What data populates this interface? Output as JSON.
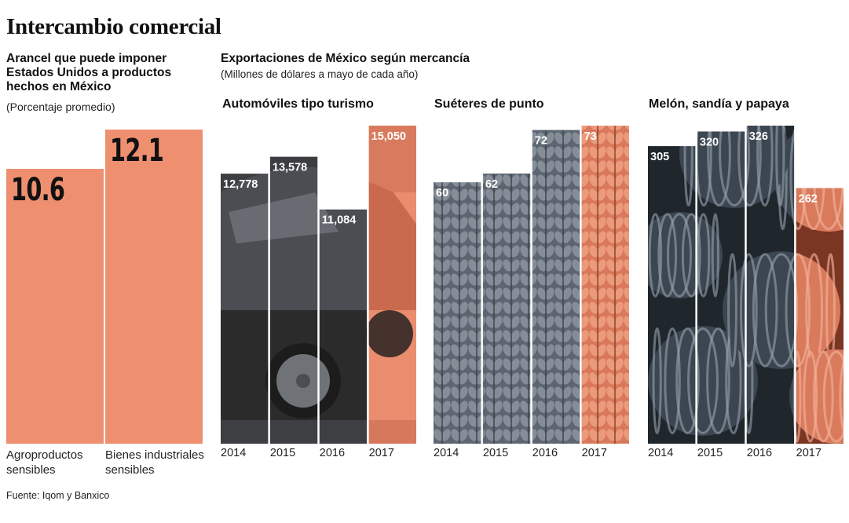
{
  "title": "Intercambio comercial",
  "left": {
    "title": "Arancel que puede imponer Estados Unidos a productos hechos en México",
    "title_lines": [
      "Arancel que puede imponer",
      "Estados Unidos a productos",
      "hechos en México"
    ],
    "note": "(Porcentaje promedio)"
  },
  "right": {
    "title": "Exportaciones de México según mercancía",
    "note": "(Millones de dólares a mayo de cada año)"
  },
  "source": "Fuente: Iqom y Banxico",
  "colors": {
    "accent": "#ee8f70",
    "dark": "#2e2e2e",
    "gray": "#7a828a",
    "text": "#111111"
  },
  "chart_data": [
    {
      "type": "bar",
      "title": "Arancel que puede imponer Estados Unidos a productos hechos en México",
      "subtitle": "(Porcentaje promedio)",
      "categories": [
        "Agroproductos sensibles",
        "Bienes industriales sensibles"
      ],
      "category_lines": [
        [
          "Agroproductos",
          "sensibles"
        ],
        [
          "Bienes industriales",
          "sensibles"
        ]
      ],
      "values": [
        10.6,
        12.1
      ],
      "value_labels": [
        "10.6",
        "12.1"
      ],
      "ylim": [
        0,
        12.1
      ]
    },
    {
      "type": "bar",
      "title": "Automóviles tipo turismo",
      "categories": [
        "2014",
        "2015",
        "2016",
        "2017"
      ],
      "values": [
        12778,
        13578,
        11084,
        15050
      ],
      "value_labels": [
        "12,778",
        "13,578",
        "11,084",
        "15,050"
      ],
      "ylim": [
        0,
        15050
      ]
    },
    {
      "type": "bar",
      "title": "Suéteres de punto",
      "categories": [
        "2014",
        "2015",
        "2016",
        "2017"
      ],
      "values": [
        60,
        62,
        72,
        73
      ],
      "value_labels": [
        "60",
        "62",
        "72",
        "73"
      ],
      "ylim": [
        0,
        73
      ]
    },
    {
      "type": "bar",
      "title": "Melón, sandía y papaya",
      "categories": [
        "2014",
        "2015",
        "2016",
        "2017"
      ],
      "values": [
        305,
        320,
        326,
        262
      ],
      "value_labels": [
        "305",
        "320",
        "326",
        "262"
      ],
      "ylim": [
        0,
        326
      ]
    }
  ]
}
